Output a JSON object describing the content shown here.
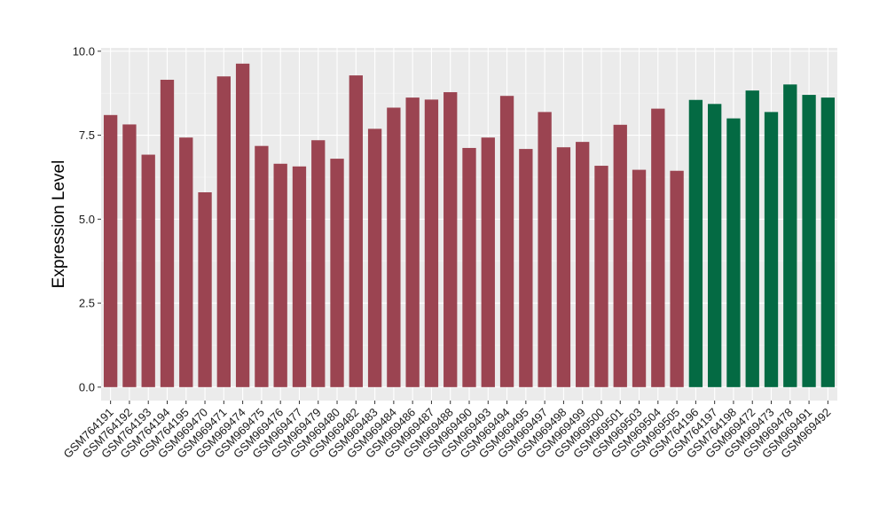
{
  "chart_data": {
    "type": "bar",
    "title": "",
    "xlabel": "",
    "ylabel": "Expression Level",
    "ylim": [
      -0.4,
      10.1
    ],
    "yticks": [
      0.0,
      2.5,
      5.0,
      7.5,
      10.0
    ],
    "ytick_labels": [
      "0.0",
      "2.5",
      "5.0",
      "7.5",
      "10.0"
    ],
    "grid": true,
    "panel_color": "#ebebeb",
    "colors": {
      "group_a": "#9b4451",
      "group_b": "#046a43"
    },
    "categories": [
      "GSM764191",
      "GSM764192",
      "GSM764193",
      "GSM764194",
      "GSM764195",
      "GSM969470",
      "GSM969471",
      "GSM969474",
      "GSM969475",
      "GSM969476",
      "GSM969477",
      "GSM969479",
      "GSM969480",
      "GSM969482",
      "GSM969483",
      "GSM969484",
      "GSM969486",
      "GSM969487",
      "GSM969488",
      "GSM969490",
      "GSM969493",
      "GSM969494",
      "GSM969495",
      "GSM969497",
      "GSM969498",
      "GSM969499",
      "GSM969500",
      "GSM969501",
      "GSM969503",
      "GSM969504",
      "GSM969505",
      "GSM764196",
      "GSM764197",
      "GSM764198",
      "GSM969472",
      "GSM969473",
      "GSM969478",
      "GSM969491",
      "GSM969492"
    ],
    "values": [
      8.1,
      7.82,
      6.92,
      9.15,
      7.43,
      5.8,
      9.25,
      9.63,
      7.18,
      6.65,
      6.57,
      7.35,
      6.8,
      9.28,
      7.69,
      8.32,
      8.62,
      8.56,
      8.78,
      7.12,
      7.43,
      8.67,
      7.09,
      8.19,
      7.14,
      7.3,
      6.59,
      7.81,
      6.47,
      8.29,
      6.44,
      8.55,
      8.43,
      8.0,
      8.83,
      8.19,
      9.01,
      8.7,
      8.62
    ],
    "groups": [
      "a",
      "a",
      "a",
      "a",
      "a",
      "a",
      "a",
      "a",
      "a",
      "a",
      "a",
      "a",
      "a",
      "a",
      "a",
      "a",
      "a",
      "a",
      "a",
      "a",
      "a",
      "a",
      "a",
      "a",
      "a",
      "a",
      "a",
      "a",
      "a",
      "a",
      "a",
      "b",
      "b",
      "b",
      "b",
      "b",
      "b",
      "b",
      "b"
    ]
  }
}
